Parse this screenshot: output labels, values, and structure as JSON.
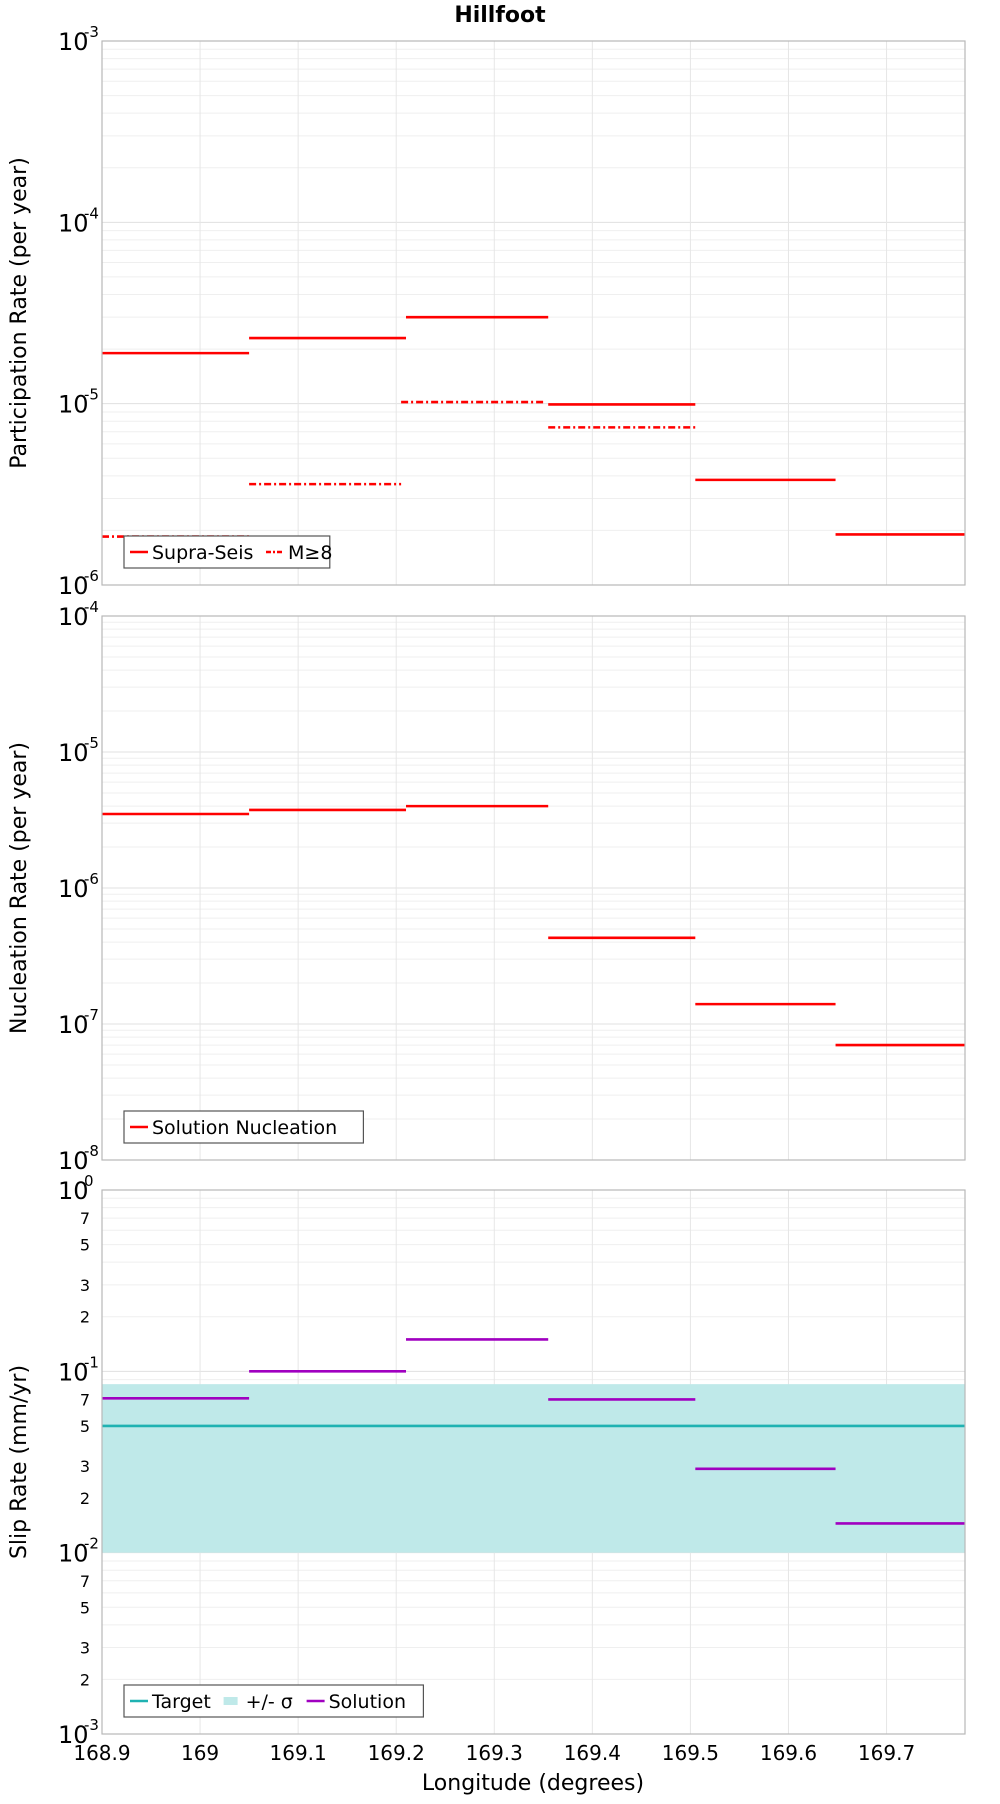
{
  "chart_data": [
    {
      "type": "line",
      "title": "Hillfoot",
      "ylabel": "Participation Rate (per year)",
      "xlabel": "",
      "xlim": [
        168.9,
        169.78
      ],
      "ylim": [
        1e-06,
        0.001
      ],
      "yscale": "log",
      "legend_position": "bottom-left",
      "series": [
        {
          "name": "Supra-Seis",
          "color": "#ff0000",
          "style": "solid",
          "segments": [
            {
              "x": [
                168.9,
                169.05
              ],
              "y": 1.9e-05
            },
            {
              "x": [
                169.05,
                169.21
              ],
              "y": 2.3e-05
            },
            {
              "x": [
                169.21,
                169.355
              ],
              "y": 3e-05
            },
            {
              "x": [
                169.355,
                169.505
              ],
              "y": 9.9e-06
            },
            {
              "x": [
                169.505,
                169.648
              ],
              "y": 3.8e-06
            },
            {
              "x": [
                169.648,
                169.78
              ],
              "y": 1.9e-06
            }
          ]
        },
        {
          "name": "M≥8",
          "color": "#ff0000",
          "style": "dashdot",
          "segments": [
            {
              "x": [
                168.9,
                169.05
              ],
              "y": 1.85e-06
            },
            {
              "x": [
                169.05,
                169.205
              ],
              "y": 3.6e-06
            },
            {
              "x": [
                169.205,
                169.35
              ],
              "y": 1.02e-05
            },
            {
              "x": [
                169.355,
                169.505
              ],
              "y": 7.4e-06
            }
          ]
        }
      ]
    },
    {
      "type": "line",
      "title": "",
      "ylabel": "Nucleation Rate (per year)",
      "xlabel": "",
      "xlim": [
        168.9,
        169.78
      ],
      "ylim": [
        1e-08,
        0.0001
      ],
      "yscale": "log",
      "legend_position": "bottom-left",
      "series": [
        {
          "name": "Solution Nucleation",
          "color": "#ff0000",
          "style": "solid",
          "segments": [
            {
              "x": [
                168.9,
                169.05
              ],
              "y": 3.5e-06
            },
            {
              "x": [
                169.05,
                169.21
              ],
              "y": 3.75e-06
            },
            {
              "x": [
                169.21,
                169.355
              ],
              "y": 4e-06
            },
            {
              "x": [
                169.355,
                169.505
              ],
              "y": 4.3e-07
            },
            {
              "x": [
                169.505,
                169.648
              ],
              "y": 1.4e-07
            },
            {
              "x": [
                169.648,
                169.78
              ],
              "y": 7e-08
            }
          ]
        }
      ]
    },
    {
      "type": "line",
      "title": "",
      "ylabel": "Slip Rate (mm/yr)",
      "xlabel": "Longitude (degrees)",
      "xlim": [
        168.9,
        169.78
      ],
      "xticks": [
        168.9,
        169,
        169.1,
        169.2,
        169.3,
        169.4,
        169.5,
        169.6,
        169.7
      ],
      "xtick_labels": [
        "168.9",
        "169",
        "169.1",
        "169.2",
        "169.3",
        "169.4",
        "169.5",
        "169.6",
        "169.7"
      ],
      "ylim": [
        0.001,
        1
      ],
      "yscale": "log",
      "minor_tick_labels": [
        "2",
        "3",
        "5",
        "7"
      ],
      "legend_position": "bottom-left",
      "band": {
        "name": "+/- σ",
        "color": "#bfe9e9",
        "y_low": 0.01,
        "y_high": 0.085
      },
      "series": [
        {
          "name": "Target",
          "color": "#1fb2b2",
          "style": "solid",
          "segments": [
            {
              "x": [
                168.9,
                169.78
              ],
              "y": 0.05
            }
          ]
        },
        {
          "name": "Solution",
          "color": "#a000c0",
          "style": "solid",
          "segments": [
            {
              "x": [
                168.9,
                169.05
              ],
              "y": 0.071
            },
            {
              "x": [
                169.05,
                169.21
              ],
              "y": 0.1
            },
            {
              "x": [
                169.21,
                169.355
              ],
              "y": 0.15
            },
            {
              "x": [
                169.355,
                169.505
              ],
              "y": 0.07
            },
            {
              "x": [
                169.505,
                169.648
              ],
              "y": 0.029
            },
            {
              "x": [
                169.648,
                169.78
              ],
              "y": 0.0145
            }
          ]
        }
      ]
    }
  ]
}
